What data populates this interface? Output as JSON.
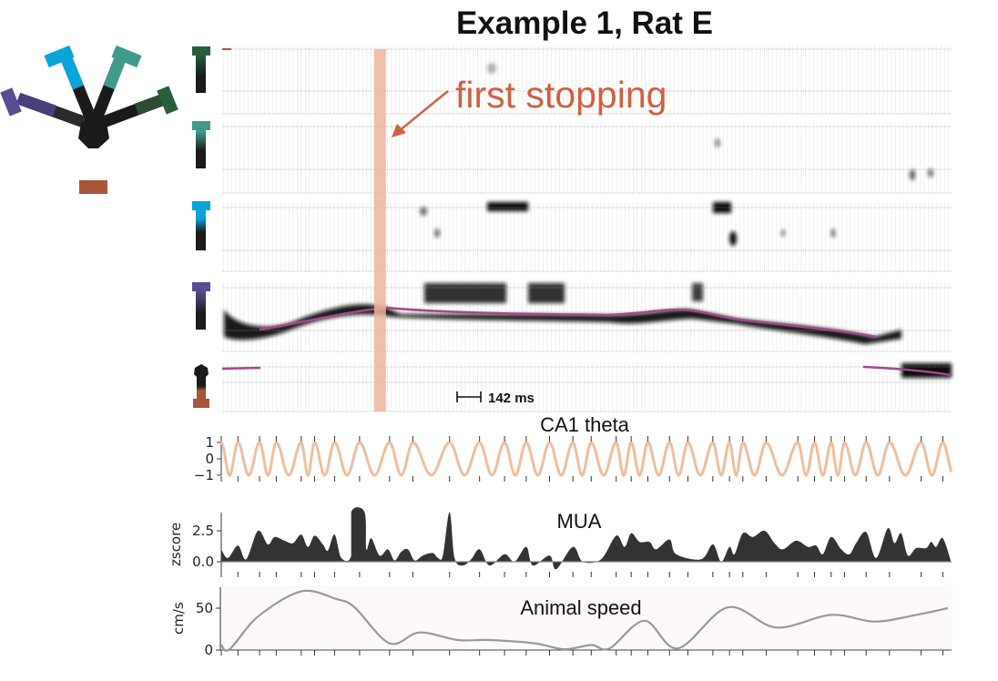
{
  "title": "Example 1, Rat E",
  "annotation": {
    "label": "first stopping",
    "color": "#d0603e",
    "time_s": 0.95,
    "band_color": "#f0b49b"
  },
  "scale_bar": {
    "label": "142 ms"
  },
  "maze_colors": {
    "arm_purple": "#5a4c92",
    "arm_blue": "#0aa3da",
    "arm_teal": "#419b8d",
    "arm_green": "#275f3b",
    "home": "#a9553b",
    "center": "#1a1a1a",
    "track": "#a3488f"
  },
  "chart_data": [
    {
      "type": "line",
      "title": "CA1 theta",
      "ylabel": "",
      "yticks": [
        {
          "value": 1,
          "label": "1"
        },
        {
          "value": 0,
          "label": "0"
        },
        {
          "value": -1,
          "label": "−1"
        }
      ],
      "ylim": [
        -1,
        1
      ],
      "xlim_s": [
        0,
        4.38
      ],
      "color": "#efbf9f",
      "peak_times_s": [
        0,
        0.1,
        0.23,
        0.33,
        0.48,
        0.56,
        0.68,
        0.83,
        1.01,
        1.15,
        1.37,
        1.55,
        1.7,
        1.83,
        1.97,
        2.11,
        2.22,
        2.37,
        2.46,
        2.56,
        2.69,
        2.8,
        2.95,
        3.05,
        3.13,
        3.27,
        3.46,
        3.56,
        3.66,
        3.74,
        3.87,
        4.01,
        4.2,
        4.33
      ]
    },
    {
      "type": "area",
      "title": "MUA",
      "ylabel": "zscore",
      "yticks": [
        {
          "value": 2.5,
          "label": "2.5"
        },
        {
          "value": 0,
          "label": "0.0"
        }
      ],
      "ylim": [
        -0.7,
        4.0
      ],
      "color": "#333333",
      "x": [
        0,
        0.04,
        0.1,
        0.15,
        0.22,
        0.28,
        0.32,
        0.38,
        0.43,
        0.48,
        0.52,
        0.56,
        0.61,
        0.64,
        0.68,
        0.72,
        0.78,
        0.78,
        0.86,
        0.87,
        0.9,
        0.95,
        1.0,
        1.04,
        1.08,
        1.12,
        1.16,
        1.21,
        1.27,
        1.3,
        1.33,
        1.37,
        1.4,
        1.45,
        1.5,
        1.55,
        1.61,
        1.7,
        1.76,
        1.83,
        1.87,
        1.97,
        2.01,
        2.11,
        2.17,
        2.28,
        2.37,
        2.42,
        2.46,
        2.51,
        2.57,
        2.61,
        2.69,
        2.73,
        2.88,
        2.95,
        3.0,
        3.05,
        3.08,
        3.13,
        3.19,
        3.26,
        3.32,
        3.37,
        3.45,
        3.52,
        3.57,
        3.61,
        3.66,
        3.72,
        3.77,
        3.81,
        3.87,
        3.93,
        4.0,
        4.04,
        4.08,
        4.12,
        4.17,
        4.23,
        4.26,
        4.29,
        4.33,
        4.38
      ],
      "y": [
        1.0,
        0.3,
        1.3,
        0.2,
        2.5,
        1.4,
        2.0,
        1.7,
        1.5,
        2.2,
        1.2,
        2.1,
        1.4,
        0.9,
        2.2,
        0.3,
        0.5,
        4.0,
        4.0,
        1.0,
        1.9,
        0.5,
        1.0,
        0.1,
        0.8,
        1.0,
        0.1,
        0.5,
        0.7,
        0.3,
        0.5,
        4.0,
        0.3,
        -0.3,
        0.2,
        1.0,
        -0.3,
        0.6,
        0.0,
        1.2,
        -0.3,
        0.5,
        -0.6,
        1.2,
        0.0,
        0.2,
        2.1,
        1.2,
        2.3,
        1.6,
        1.6,
        1.0,
        1.8,
        0.6,
        0.2,
        1.4,
        0.0,
        1.2,
        0.6,
        2.3,
        2.0,
        2.5,
        1.5,
        1.0,
        1.7,
        1.2,
        1.3,
        0.6,
        2.0,
        1.0,
        0.6,
        1.5,
        2.4,
        0.3,
        2.7,
        1.5,
        2.3,
        0.5,
        1.1,
        1.1,
        1.6,
        1.2,
        1.9,
        0.0
      ]
    },
    {
      "type": "line",
      "title": "Animal speed",
      "ylabel": "cm/s",
      "yticks": [
        {
          "value": 50,
          "label": "50"
        },
        {
          "value": 0,
          "label": "0"
        }
      ],
      "ylim": [
        0,
        75
      ],
      "color": "#999999",
      "x": [
        0,
        0.05,
        0.22,
        0.48,
        0.69,
        0.8,
        1.01,
        1.19,
        1.42,
        1.61,
        1.88,
        2.06,
        2.22,
        2.33,
        2.54,
        2.74,
        3.04,
        3.33,
        3.66,
        3.92,
        4.17,
        4.36
      ],
      "y": [
        6,
        1,
        40,
        70,
        61,
        51,
        8,
        21,
        12,
        12,
        8,
        1,
        6,
        2,
        35,
        2,
        51,
        27,
        42,
        34,
        42,
        50
      ]
    }
  ]
}
